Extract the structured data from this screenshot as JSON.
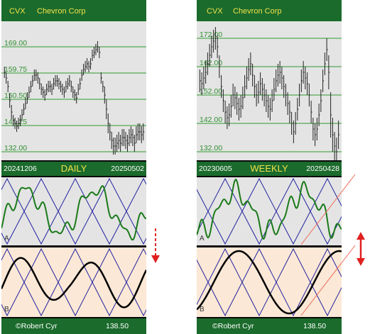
{
  "colors": {
    "frame": "#0b0b0b",
    "header_bg": "#1b6b2c",
    "header_text": "#f2e24a",
    "footer_text": "#ffffff",
    "plot_bg": "#e4e4e4",
    "osc_b_bg": "#fbe8d6",
    "price_bar": "#222222",
    "level_line": "#2f9a2f",
    "level_label": "#2f8f2f",
    "osc_green": "#1a7a1a",
    "osc_blue": "#2323a0",
    "osc_black": "#000000",
    "marker_red": "#e02020",
    "trend_line": "#f06a5a"
  },
  "panels": {
    "daily": {
      "ticker": "CVX",
      "company": "Chevron Corp",
      "period": "DAILY",
      "start_date": "20241206",
      "end_date": "20250502",
      "credit": "©Robert Cyr",
      "last_price": "138.50",
      "osc_a_letter": "A",
      "osc_b_letter": "B",
      "marker_icon": "dashed-down-arrow-icon"
    },
    "weekly": {
      "ticker": "CVX",
      "company": "Chevron Corp",
      "period": "WEEKLY",
      "start_date": "20230605",
      "end_date": "20250428",
      "credit": "©Robert Cyr",
      "last_price": "138.50",
      "osc_a_letter": "A",
      "osc_b_letter": "B",
      "marker_icon": "double-headed-arrow-icon"
    }
  },
  "chart_data": [
    {
      "type": "bar",
      "panel": "daily",
      "ylim": [
        129,
        178
      ],
      "levels": [
        {
          "value": 169.0,
          "label": "169.00"
        },
        {
          "value": 159.75,
          "label": "159.75"
        },
        {
          "value": 150.5,
          "label": "150.50"
        },
        {
          "value": 141.25,
          "label": "141.25"
        },
        {
          "value": 132.0,
          "label": "132.00"
        }
      ],
      "close": [
        160,
        158,
        155,
        150,
        146,
        143,
        142,
        141,
        142,
        143,
        145,
        147,
        149,
        151,
        153,
        155,
        157,
        159,
        159,
        158,
        156,
        154,
        153,
        152,
        154,
        155,
        155,
        154,
        156,
        157,
        157,
        156,
        155,
        154,
        153,
        155,
        156,
        157,
        155,
        153,
        152,
        151,
        154,
        156,
        159,
        161,
        162,
        163,
        162,
        163,
        166,
        167,
        168,
        169,
        167,
        158,
        155,
        152,
        147,
        142,
        139,
        136,
        134,
        134,
        135,
        136,
        135,
        137,
        137,
        136,
        135,
        137,
        138,
        137,
        135,
        138,
        139,
        139,
        138,
        139
      ],
      "range": [
        2,
        2,
        2,
        2.5,
        2.5,
        2,
        2,
        2,
        2,
        2,
        2,
        2,
        2,
        2,
        2,
        2,
        2,
        2,
        2,
        2,
        2,
        2,
        2,
        2,
        2,
        2,
        2,
        2,
        2,
        2,
        2,
        2,
        2,
        2,
        2,
        2,
        2,
        2,
        2,
        2,
        2,
        2,
        2,
        2,
        2,
        2,
        2,
        2,
        2,
        2,
        2,
        2,
        2,
        2,
        2,
        2,
        2,
        3,
        3.5,
        3.5,
        3,
        3,
        3,
        3,
        3,
        3,
        3,
        3,
        3,
        3,
        3,
        3,
        3,
        3,
        3,
        3,
        3,
        3,
        3,
        3
      ]
    },
    {
      "type": "bar",
      "panel": "weekly",
      "ylim": [
        129,
        178
      ],
      "levels": [
        {
          "value": 172.0,
          "label": "172.00"
        },
        {
          "value": 162.0,
          "label": "162.00"
        },
        {
          "value": 152.0,
          "label": "152.00"
        },
        {
          "value": 142.0,
          "label": "142.00"
        },
        {
          "value": 132.0,
          "label": "132.00"
        }
      ],
      "close": [
        157,
        156,
        158,
        160,
        163,
        166,
        169,
        171,
        172,
        169,
        162,
        155,
        150,
        146,
        144,
        145,
        148,
        152,
        151,
        149,
        147,
        148,
        151,
        155,
        158,
        161,
        163,
        159,
        155,
        152,
        153,
        156,
        154,
        152,
        150,
        148,
        147,
        150,
        154,
        157,
        159,
        160,
        158,
        155,
        152,
        149,
        146,
        142,
        139,
        142,
        147,
        152,
        157,
        160,
        158,
        156,
        152,
        146,
        140,
        138,
        140,
        145,
        150,
        157,
        163,
        168,
        160,
        145,
        138,
        134,
        132,
        138
      ],
      "range": [
        4,
        4,
        4,
        4,
        4,
        4,
        4,
        4,
        4,
        4,
        4,
        4,
        4,
        4,
        4,
        4,
        4,
        4,
        4,
        4,
        4,
        4,
        4,
        4,
        4,
        4,
        4,
        4,
        4,
        4,
        4,
        4,
        4,
        4,
        4,
        4,
        4,
        4,
        4,
        4,
        4,
        4,
        4,
        4,
        4,
        4,
        4,
        4,
        4,
        4,
        4,
        4,
        4,
        4,
        4,
        4,
        4,
        4,
        4,
        4,
        4,
        4,
        4,
        4,
        4,
        4,
        6,
        8,
        6,
        5,
        5,
        5
      ]
    }
  ]
}
